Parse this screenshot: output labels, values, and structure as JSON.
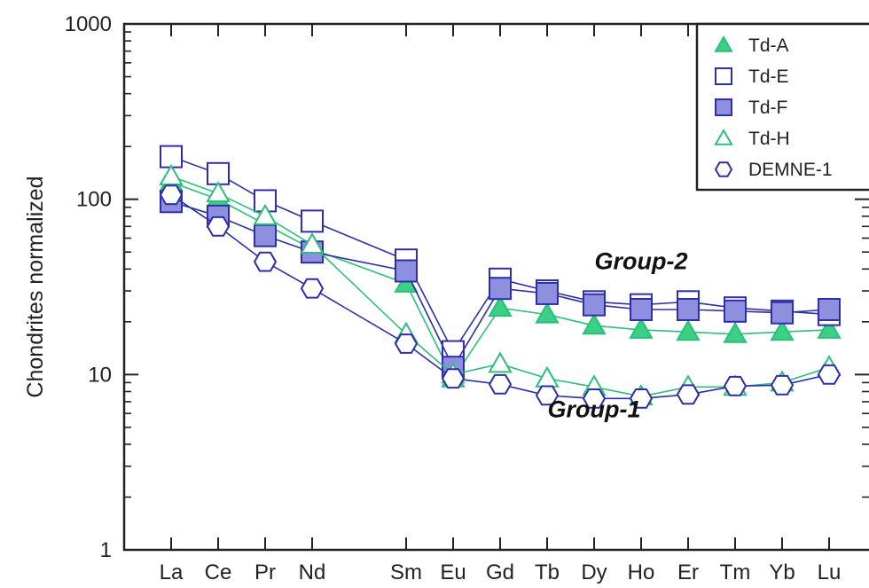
{
  "chart_data": {
    "type": "line",
    "title": "",
    "xlabel": "",
    "ylabel": "Chondrites normalized",
    "yscale": "log",
    "ylim": [
      1,
      1000
    ],
    "y_ticks": [
      "1",
      "10",
      "100",
      "1000"
    ],
    "categories": [
      "La",
      "Ce",
      "Pr",
      "Nd",
      "Sm",
      "Eu",
      "Gd",
      "Tb",
      "Dy",
      "Ho",
      "Er",
      "Tm",
      "Yb",
      "Lu"
    ],
    "legend_position": "top-right",
    "series": [
      {
        "name": "Td-A",
        "marker": "triangle-filled",
        "color": "#2bbf7a",
        "values": [
          125,
          100,
          72,
          52,
          33,
          9.5,
          24,
          22,
          19,
          18,
          17.5,
          17,
          17.5,
          18
        ]
      },
      {
        "name": "Td-E",
        "marker": "square-open",
        "color": "#2e2ea8",
        "values": [
          175,
          140,
          98,
          75,
          45,
          13.5,
          35,
          30,
          26,
          25,
          26,
          24,
          23,
          22
        ]
      },
      {
        "name": "Td-F",
        "marker": "square-filled",
        "color": "#2e2ea8",
        "values": [
          97,
          80,
          62,
          50,
          39,
          11,
          31,
          29,
          25,
          23.5,
          23.5,
          23,
          22.5,
          23.5
        ]
      },
      {
        "name": "Td-H",
        "marker": "triangle-open",
        "color": "#2bbf7a",
        "values": [
          135,
          108,
          80,
          55,
          17,
          10,
          11.5,
          9.5,
          8.5,
          7.5,
          8.5,
          8.5,
          9,
          11
        ]
      },
      {
        "name": "DEMNE-1",
        "marker": "hexagon-open",
        "color": "#2e2ea8",
        "values": [
          106,
          70,
          44,
          31,
          15,
          9.5,
          8.8,
          7.6,
          7.3,
          7.3,
          7.7,
          8.6,
          8.7,
          10
        ]
      }
    ],
    "annotations": [
      {
        "text": "Group-2",
        "category": "Ho",
        "value": 40
      },
      {
        "text": "Group-1",
        "category": "Dy",
        "value": 5.7
      }
    ]
  }
}
